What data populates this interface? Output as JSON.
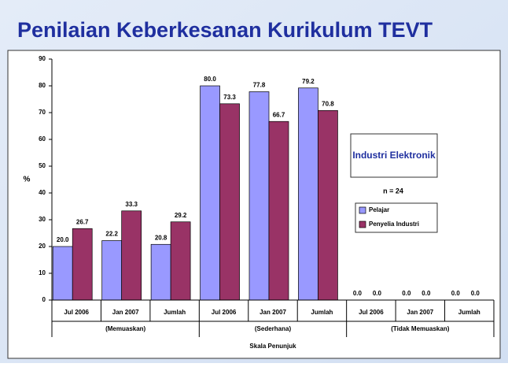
{
  "chart_data": {
    "type": "bar",
    "title": "Penilaian Keberkesanan Kurikulum TEVT",
    "y_label": "%",
    "x_label": "Skala Penunjuk",
    "annotation": "Industri Elektronik",
    "note": "n = 24",
    "categories": [
      "Jul 2006",
      "Jan 2007",
      "Jumlah",
      "Jul 2006",
      "Jan 2007",
      "Jumlah",
      "Jul 2006",
      "Jan 2007",
      "Jumlah"
    ],
    "groups": [
      "(Memuaskan)",
      "(Sederhana)",
      "(Tidak Memuaskan)"
    ],
    "series": [
      {
        "name": "Pelajar",
        "color": "#9999ff",
        "values": [
          20,
          22.2,
          20.8,
          80,
          77.8,
          79.2,
          0,
          0,
          0
        ],
        "value_labels": [
          "20.0",
          "22.2",
          "20.8",
          "80.0",
          "77.8",
          "79.2",
          "0.0",
          "0.0",
          "0.0"
        ]
      },
      {
        "name": "Penyelia Industri",
        "color": "#993366",
        "values": [
          26.7,
          33.3,
          29.2,
          73.3,
          66.7,
          70.8,
          0,
          0,
          0
        ],
        "value_labels": [
          "26.7",
          "33.3",
          "29.2",
          "73.3",
          "66.7",
          "70.8",
          "0.0",
          "0.0",
          "0.0"
        ]
      }
    ],
    "ylim": [
      0,
      90
    ],
    "yticks": [
      0,
      10,
      20,
      30,
      40,
      50,
      60,
      70,
      80,
      90
    ]
  }
}
